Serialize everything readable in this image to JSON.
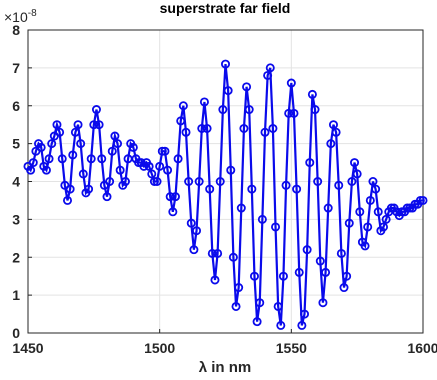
{
  "chart_data": {
    "type": "line",
    "title": "superstrate far field",
    "xlabel": "λ in nm",
    "y_multiplier_base": "×10",
    "y_multiplier_exponent": "-8",
    "x": [
      1450,
      1451,
      1452,
      1453,
      1454,
      1455,
      1456,
      1457,
      1458,
      1459,
      1460,
      1461,
      1462,
      1463,
      1464,
      1465,
      1466,
      1467,
      1468,
      1469,
      1470,
      1471,
      1472,
      1473,
      1474,
      1475,
      1476,
      1477,
      1478,
      1479,
      1480,
      1481,
      1482,
      1483,
      1484,
      1485,
      1486,
      1487,
      1488,
      1489,
      1490,
      1491,
      1492,
      1493,
      1494,
      1495,
      1496,
      1497,
      1498,
      1499,
      1500,
      1501,
      1502,
      1503,
      1504,
      1505,
      1506,
      1507,
      1508,
      1509,
      1510,
      1511,
      1512,
      1513,
      1514,
      1515,
      1516,
      1517,
      1518,
      1519,
      1520,
      1521,
      1522,
      1523,
      1524,
      1525,
      1526,
      1527,
      1528,
      1529,
      1530,
      1531,
      1532,
      1533,
      1534,
      1535,
      1536,
      1537,
      1538,
      1539,
      1540,
      1541,
      1542,
      1543,
      1544,
      1545,
      1546,
      1547,
      1548,
      1549,
      1550,
      1551,
      1552,
      1553,
      1554,
      1555,
      1556,
      1557,
      1558,
      1559,
      1560,
      1561,
      1562,
      1563,
      1564,
      1565,
      1566,
      1567,
      1568,
      1569,
      1570,
      1571,
      1572,
      1573,
      1574,
      1575,
      1576,
      1577,
      1578,
      1579,
      1580,
      1581,
      1582,
      1583,
      1584,
      1585,
      1586,
      1587,
      1588,
      1589,
      1590,
      1591,
      1592,
      1593,
      1594,
      1595,
      1596,
      1597,
      1598,
      1599,
      1600
    ],
    "series": [
      {
        "color": "#0a0aeb",
        "values": [
          4.4,
          4.3,
          4.5,
          4.8,
          5.0,
          4.9,
          4.4,
          4.3,
          4.6,
          5.0,
          5.2,
          5.5,
          5.3,
          4.6,
          3.9,
          3.5,
          3.8,
          4.7,
          5.3,
          5.5,
          5.0,
          4.2,
          3.7,
          3.8,
          4.6,
          5.5,
          5.9,
          5.5,
          4.6,
          3.9,
          3.6,
          4.0,
          4.8,
          5.2,
          5.0,
          4.3,
          3.9,
          4.0,
          4.6,
          5.0,
          4.9,
          4.6,
          4.5,
          4.5,
          4.4,
          4.5,
          4.4,
          4.2,
          4.0,
          4.0,
          4.4,
          4.8,
          4.8,
          4.3,
          3.6,
          3.2,
          3.6,
          4.6,
          5.6,
          6.0,
          5.3,
          4.0,
          2.9,
          2.2,
          2.7,
          4.0,
          5.4,
          6.1,
          5.4,
          3.8,
          2.1,
          1.4,
          2.1,
          4.0,
          5.9,
          7.1,
          6.4,
          4.3,
          2.0,
          0.7,
          1.2,
          3.3,
          5.4,
          6.5,
          5.9,
          3.8,
          1.5,
          0.3,
          0.8,
          3.0,
          5.3,
          6.8,
          7.0,
          5.4,
          2.8,
          0.7,
          0.2,
          1.5,
          3.9,
          5.8,
          6.6,
          5.8,
          3.8,
          1.6,
          0.2,
          0.5,
          2.2,
          4.5,
          6.3,
          5.9,
          4.0,
          1.9,
          0.8,
          1.6,
          3.3,
          5.0,
          5.5,
          5.3,
          3.9,
          2.1,
          1.2,
          1.5,
          2.9,
          4.0,
          4.5,
          4.2,
          3.2,
          2.4,
          2.3,
          2.8,
          3.5,
          4.0,
          3.8,
          3.2,
          2.7,
          2.8,
          3.0,
          3.2,
          3.3,
          3.3,
          3.2,
          3.1,
          3.2,
          3.2,
          3.3,
          3.3,
          3.3,
          3.4,
          3.4,
          3.5,
          3.5
        ]
      }
    ],
    "xlim": [
      1450,
      1600
    ],
    "xticks": [
      1450,
      1500,
      1550,
      1600
    ],
    "ylim": [
      0,
      8
    ],
    "yticks": [
      0,
      1,
      2,
      3,
      4,
      5,
      6,
      7,
      8
    ],
    "grid": true
  }
}
